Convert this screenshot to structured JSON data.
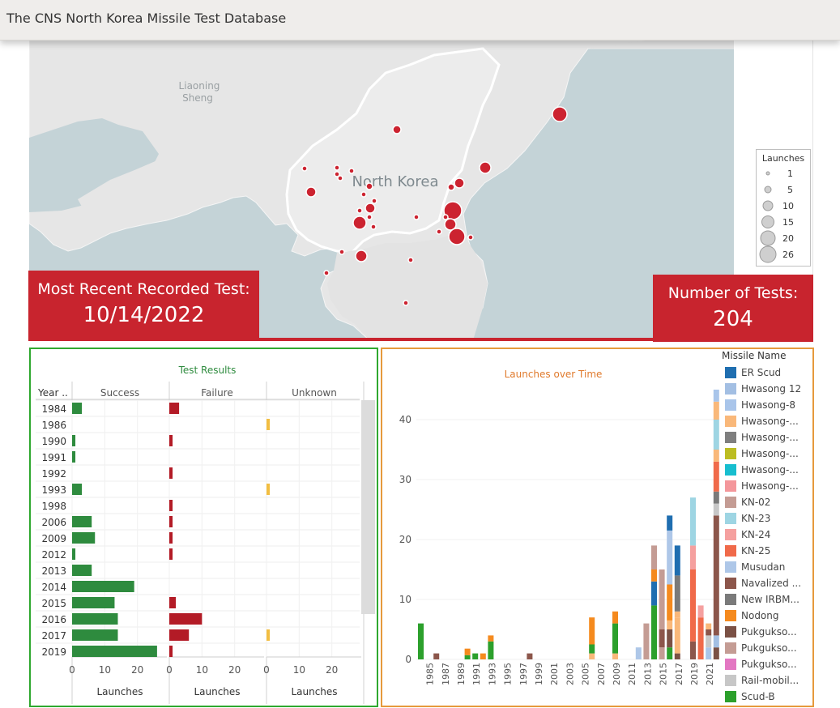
{
  "page": {
    "title": "The CNS North Korea Missile Test Database"
  },
  "map": {
    "labels": {
      "region": "Liaoning",
      "region2": "Sheng",
      "country": "North Korea"
    },
    "legend": {
      "title": "Launches",
      "sizes": [
        "1",
        "5",
        "10",
        "15",
        "20",
        "26"
      ]
    },
    "colors": {
      "water": "#c4d3d7",
      "land": "#e6e6e6",
      "dot": "#cc2330"
    }
  },
  "recent_test": {
    "label": "Most Recent Recorded Test:",
    "value": "10/14/2022"
  },
  "test_count": {
    "label": "Number of Tests:",
    "value": "204"
  },
  "chart_data": [
    {
      "type": "bar",
      "title": "Test Results",
      "row_header": "Year ..",
      "facets": [
        "Success",
        "Failure",
        "Unknown"
      ],
      "categories": [
        "1984",
        "1986",
        "1990",
        "1991",
        "1992",
        "1993",
        "1998",
        "2006",
        "2009",
        "2012",
        "2013",
        "2014",
        "2015",
        "2016",
        "2017",
        "2019"
      ],
      "series": [
        {
          "name": "Success",
          "color": "#2e8b3e",
          "values": [
            3,
            0,
            1,
            1,
            0,
            3,
            0,
            6,
            7,
            1,
            6,
            19,
            13,
            14,
            14,
            26
          ]
        },
        {
          "name": "Failure",
          "color": "#b31b26",
          "values": [
            3,
            0,
            1,
            0,
            1,
            0,
            1,
            1,
            1,
            1,
            0,
            0,
            2,
            10,
            6,
            1
          ]
        },
        {
          "name": "Unknown",
          "color": "#f2be42",
          "values": [
            0,
            1,
            0,
            0,
            0,
            1,
            0,
            0,
            0,
            0,
            0,
            0,
            0,
            0,
            1,
            0
          ]
        }
      ],
      "xticks": [
        "0",
        "10",
        "20"
      ],
      "xlabel": "Launches",
      "xlim": [
        0,
        29
      ]
    },
    {
      "type": "bar",
      "stacked": true,
      "title": "Launches over Time",
      "legend_title": "Missile Name",
      "ylim": [
        0,
        45
      ],
      "yticks": [
        "0",
        "10",
        "20",
        "30",
        "40"
      ],
      "xticks": [
        "1985",
        "1987",
        "1989",
        "1991",
        "1993",
        "1995",
        "1997",
        "1999",
        "2001",
        "2003",
        "2005",
        "2007",
        "2009",
        "2011",
        "2013",
        "2015",
        "2017",
        "2019",
        "2021"
      ],
      "legend": [
        {
          "name": "ER Scud",
          "color": "#1f6eb0"
        },
        {
          "name": "Hwasong 12",
          "color": "#a3bfe3"
        },
        {
          "name": "Hwasong-8",
          "color": "#a9c5ea"
        },
        {
          "name": "Hwasong-...",
          "color": "#f9b87a"
        },
        {
          "name": "Hwasong-...",
          "color": "#7f7f7f"
        },
        {
          "name": "Hwasong-...",
          "color": "#bcbd22"
        },
        {
          "name": "Hwasong-...",
          "color": "#17becf"
        },
        {
          "name": "Hwasong-...",
          "color": "#f4979b"
        },
        {
          "name": "KN-02",
          "color": "#c49c94"
        },
        {
          "name": "KN-23",
          "color": "#9ed5e3"
        },
        {
          "name": "KN-24",
          "color": "#f5a09f"
        },
        {
          "name": "KN-25",
          "color": "#f06a4a"
        },
        {
          "name": "Musudan",
          "color": "#aec7e8"
        },
        {
          "name": "Navalized ...",
          "color": "#8c564b"
        },
        {
          "name": "New IRBM...",
          "color": "#7a7a7a"
        },
        {
          "name": "Nodong",
          "color": "#f58a1e"
        },
        {
          "name": "Pukgukso...",
          "color": "#7b5145"
        },
        {
          "name": "Pukgukso...",
          "color": "#c49c94"
        },
        {
          "name": "Pukgukso...",
          "color": "#e377c2"
        },
        {
          "name": "Rail-mobil...",
          "color": "#c7c7c7"
        },
        {
          "name": "Scud-B",
          "color": "#2ca02c"
        }
      ],
      "bars": [
        {
          "year": 1984,
          "stack": [
            [
              "Scud-B",
              6
            ]
          ]
        },
        {
          "year": 1986,
          "stack": [
            [
              "Navalized ...",
              1
            ]
          ]
        },
        {
          "year": 1990,
          "stack": [
            [
              "Scud-B",
              0.7
            ],
            [
              "Nodong",
              1.1
            ]
          ]
        },
        {
          "year": 1991,
          "stack": [
            [
              "Scud-B",
              1
            ]
          ]
        },
        {
          "year": 1992,
          "stack": [
            [
              "Nodong",
              1
            ]
          ]
        },
        {
          "year": 1993,
          "stack": [
            [
              "Scud-B",
              3
            ],
            [
              "Nodong",
              1
            ]
          ]
        },
        {
          "year": 1998,
          "stack": [
            [
              "Navalized ...",
              1
            ]
          ]
        },
        {
          "year": 2006,
          "stack": [
            [
              "Hwasong-...",
              1
            ],
            [
              "Scud-B",
              1.5
            ],
            [
              "Nodong",
              4.5
            ]
          ]
        },
        {
          "year": 2009,
          "stack": [
            [
              "Hwasong-...",
              1
            ],
            [
              "Scud-B",
              5
            ],
            [
              "Nodong",
              2
            ]
          ]
        },
        {
          "year": 2012,
          "stack": [
            [
              "Musudan",
              2
            ]
          ]
        },
        {
          "year": 2013,
          "stack": [
            [
              "KN-02",
              6
            ]
          ]
        },
        {
          "year": 2014,
          "stack": [
            [
              "Scud-B",
              9
            ],
            [
              "ER Scud",
              4
            ],
            [
              "Nodong",
              2
            ],
            [
              "KN-02",
              4
            ]
          ]
        },
        {
          "year": 2015,
          "stack": [
            [
              "KN-02",
              2
            ],
            [
              "Navalized ...",
              3
            ],
            [
              "KN-02",
              10
            ]
          ]
        },
        {
          "year": 2016,
          "stack": [
            [
              "Scud-B",
              2
            ],
            [
              "Pukgukso...",
              3
            ],
            [
              "Hwasong-...",
              1.5
            ],
            [
              "Nodong",
              6
            ],
            [
              "Musudan",
              9
            ],
            [
              "ER Scud",
              2.5
            ]
          ]
        },
        {
          "year": 2017,
          "stack": [
            [
              "Pukgukso...",
              1
            ],
            [
              "Hwasong-...",
              4
            ],
            [
              "Hwasong-...",
              2
            ],
            [
              "Hwasong-...",
              1
            ],
            [
              "New IRBM...",
              6
            ],
            [
              "ER Scud",
              5
            ]
          ]
        },
        {
          "year": 2019,
          "stack": [
            [
              "Navalized ...",
              3
            ],
            [
              "KN-25",
              12
            ],
            [
              "KN-24",
              4
            ],
            [
              "KN-23",
              8
            ]
          ]
        },
        {
          "year": 2020,
          "stack": [
            [
              "KN-25",
              7
            ],
            [
              "KN-24",
              2
            ]
          ]
        },
        {
          "year": 2021,
          "stack": [
            [
              "Hwasong-8",
              2
            ],
            [
              "Rail-mobil...",
              2
            ],
            [
              "Navalized ...",
              1
            ],
            [
              "Hwasong-...",
              1
            ]
          ]
        },
        {
          "year": 2022,
          "stack": [
            [
              "Pukgukso...",
              2
            ],
            [
              "Hwasong 12",
              2
            ],
            [
              "Navalized ...",
              20
            ],
            [
              "Rail-mobil...",
              2
            ],
            [
              "New IRBM...",
              2
            ],
            [
              "KN-25",
              5
            ],
            [
              "Hwasong-...",
              2
            ],
            [
              "KN-23",
              5
            ],
            [
              "Hwasong-...",
              3
            ],
            [
              "Hwasong-8",
              2
            ]
          ]
        }
      ]
    }
  ]
}
